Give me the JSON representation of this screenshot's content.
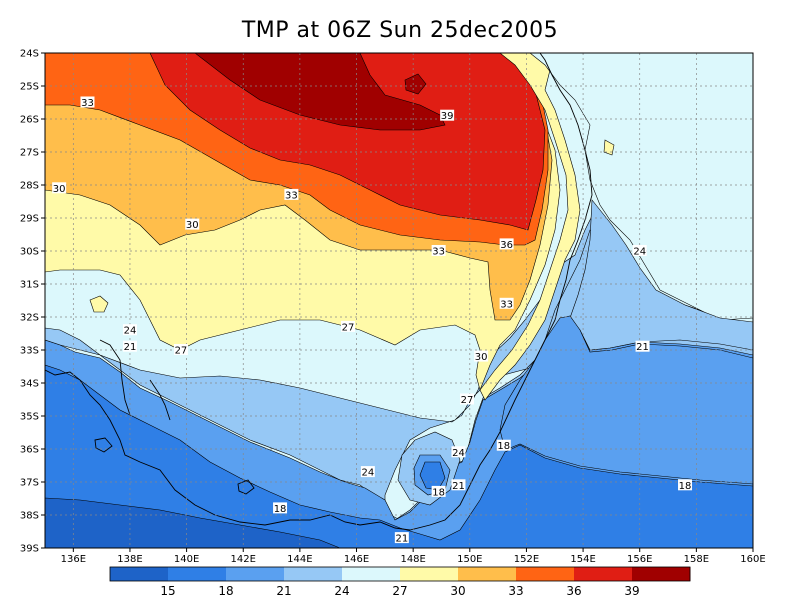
{
  "title": "TMP at 06Z Sun 25dec2005",
  "axes": {
    "lat_labels": [
      "24S",
      "25S",
      "26S",
      "27S",
      "28S",
      "29S",
      "30S",
      "31S",
      "32S",
      "33S",
      "34S",
      "35S",
      "36S",
      "37S",
      "38S",
      "39S"
    ],
    "lon_labels": [
      "136E",
      "138E",
      "140E",
      "142E",
      "144E",
      "146E",
      "148E",
      "150E",
      "152E",
      "154E",
      "156E",
      "158E",
      "160E"
    ]
  },
  "contour_labels": [
    {
      "value": "39",
      "lon": 149.2,
      "lat": -25.9
    },
    {
      "value": "33",
      "lon": 136.5,
      "lat": -25.5
    },
    {
      "value": "30",
      "lon": 135.5,
      "lat": -28.1
    },
    {
      "value": "33",
      "lon": 143.7,
      "lat": -28.3
    },
    {
      "value": "30",
      "lon": 140.2,
      "lat": -29.2
    },
    {
      "value": "33",
      "lon": 148.9,
      "lat": -30.0
    },
    {
      "value": "36",
      "lon": 151.3,
      "lat": -29.8
    },
    {
      "value": "33",
      "lon": 151.3,
      "lat": -31.6
    },
    {
      "value": "24",
      "lon": 156.0,
      "lat": -30.0
    },
    {
      "value": "27",
      "lon": 145.7,
      "lat": -32.3
    },
    {
      "value": "24",
      "lon": 138.0,
      "lat": -32.4
    },
    {
      "value": "21",
      "lon": 138.0,
      "lat": -32.9
    },
    {
      "value": "27",
      "lon": 139.8,
      "lat": -33.0
    },
    {
      "value": "30",
      "lon": 150.4,
      "lat": -33.2
    },
    {
      "value": "21",
      "lon": 156.1,
      "lat": -32.9
    },
    {
      "value": "27",
      "lon": 149.9,
      "lat": -34.5
    },
    {
      "value": "24",
      "lon": 149.6,
      "lat": -36.1
    },
    {
      "value": "18",
      "lon": 151.2,
      "lat": -35.9
    },
    {
      "value": "24",
      "lon": 146.4,
      "lat": -36.7
    },
    {
      "value": "18",
      "lon": 148.9,
      "lat": -37.3
    },
    {
      "value": "21",
      "lon": 149.6,
      "lat": -37.1
    },
    {
      "value": "18",
      "lon": 157.6,
      "lat": -37.1
    },
    {
      "value": "18",
      "lon": 143.3,
      "lat": -37.8
    },
    {
      "value": "21",
      "lon": 147.6,
      "lat": -38.7
    }
  ],
  "colorbar": {
    "labels": [
      "15",
      "18",
      "21",
      "24",
      "27",
      "30",
      "33",
      "36",
      "39"
    ],
    "colors": [
      "#1e63c8",
      "#2f7fe6",
      "#5aa0f0",
      "#96c8f5",
      "#dcf8fc",
      "#fffaa8",
      "#ffbe4b",
      "#ff6414",
      "#e01e14",
      "#a00000"
    ]
  },
  "map_data": {
    "variable": "TMP",
    "levels": [
      15,
      18,
      21,
      24,
      27,
      30,
      33,
      36,
      39
    ],
    "lon_range": [
      135,
      160
    ],
    "lat_range": [
      -39,
      -24
    ]
  }
}
